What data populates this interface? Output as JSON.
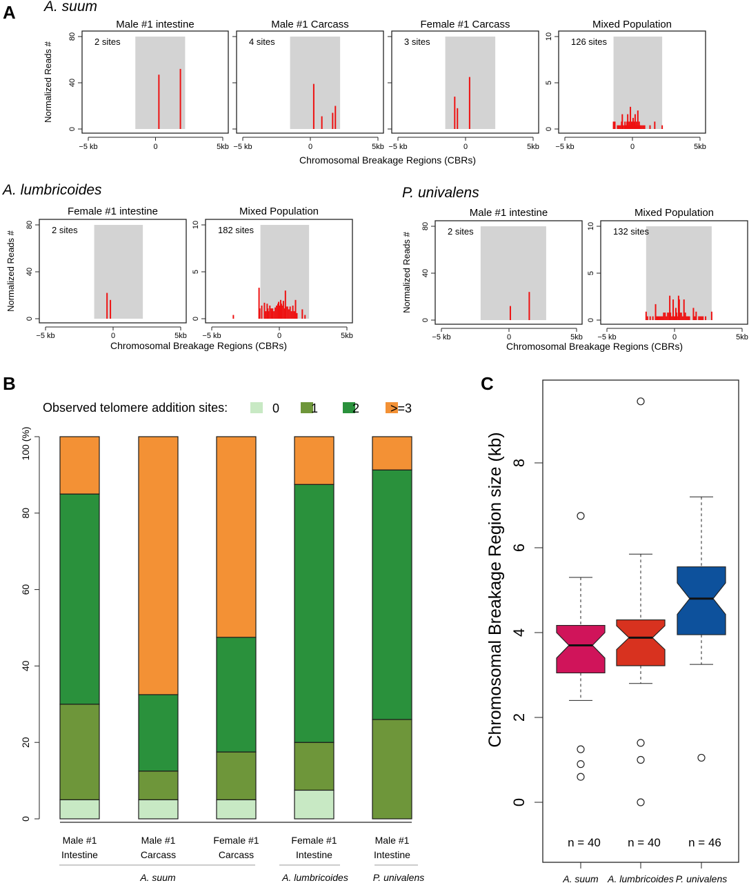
{
  "chart_data": [
    {
      "panel": "A",
      "type": "bar",
      "xlabel": "Chromosomal Breakage Regions (CBRs)",
      "ylabel": "Normalized Reads #",
      "x_ticks": [
        "−5 kb",
        "0",
        "5kb"
      ],
      "xlim_kb": [
        -5,
        5
      ],
      "groups": [
        {
          "species": "A. suum",
          "plots": [
            {
              "title": "Male #1 intestine",
              "sites": "2 sites",
              "ylim": [
                0,
                80
              ],
              "y_ticks": [
                "0",
                "40",
                "80"
              ],
              "cbr_kb": [
                -1.5,
                2.2
              ],
              "spikes": [
                [
                  0.25,
                  47
                ],
                [
                  1.85,
                  52
                ]
              ]
            },
            {
              "title": "Male #1 Carcass",
              "sites": "4 sites",
              "ylim": [
                0,
                80
              ],
              "y_ticks": [
                "0",
                "40",
                "80"
              ],
              "cbr_kb": [
                -1.5,
                2.2
              ],
              "spikes": [
                [
                  0.25,
                  39
                ],
                [
                  0.85,
                  11
                ],
                [
                  1.65,
                  14
                ],
                [
                  1.85,
                  20
                ]
              ]
            },
            {
              "title": "Female #1 Carcass",
              "sites": "3 sites",
              "ylim": [
                0,
                80
              ],
              "y_ticks": [
                "0",
                "40",
                "80"
              ],
              "cbr_kb": [
                -1.5,
                2.2
              ],
              "spikes": [
                [
                  -0.8,
                  28
                ],
                [
                  -0.6,
                  18
                ],
                [
                  0.3,
                  45
                ]
              ]
            },
            {
              "title": "Mixed Population",
              "sites": "126 sites",
              "ylim": [
                0,
                10
              ],
              "y_ticks": [
                "0",
                "5",
                "10"
              ],
              "cbr_kb": [
                -1.4,
                2.2
              ],
              "spikes": [
                [
                  -1.4,
                  0.8
                ],
                [
                  -1.3,
                  0.8
                ],
                [
                  -1.1,
                  0.4
                ],
                [
                  -1.0,
                  0.4
                ],
                [
                  -0.9,
                  0.4
                ],
                [
                  -0.8,
                  0.8
                ],
                [
                  -0.75,
                  1.6
                ],
                [
                  -0.7,
                  0.4
                ],
                [
                  -0.6,
                  0.4
                ],
                [
                  -0.55,
                  0.8
                ],
                [
                  -0.5,
                  0.4
                ],
                [
                  -0.45,
                  0.4
                ],
                [
                  -0.4,
                  0.8
                ],
                [
                  -0.35,
                  1.6
                ],
                [
                  -0.3,
                  0.4
                ],
                [
                  -0.25,
                  0.8
                ],
                [
                  -0.2,
                  0.4
                ],
                [
                  -0.15,
                  2.4
                ],
                [
                  -0.1,
                  0.4
                ],
                [
                  -0.05,
                  0.8
                ],
                [
                  0.0,
                  0.4
                ],
                [
                  0.05,
                  1.2
                ],
                [
                  0.1,
                  0.4
                ],
                [
                  0.15,
                  0.8
                ],
                [
                  0.2,
                  1.6
                ],
                [
                  0.25,
                  0.4
                ],
                [
                  0.3,
                  0.8
                ],
                [
                  0.35,
                  0.4
                ],
                [
                  0.4,
                  2.0
                ],
                [
                  0.45,
                  0.4
                ],
                [
                  0.5,
                  0.8
                ],
                [
                  0.55,
                  0.4
                ],
                [
                  0.6,
                  0.4
                ],
                [
                  0.7,
                  0.4
                ],
                [
                  0.8,
                  0.4
                ],
                [
                  0.9,
                  0.4
                ],
                [
                  1.3,
                  0.4
                ],
                [
                  1.65,
                  0.8
                ],
                [
                  2.2,
                  0.4
                ]
              ]
            }
          ]
        },
        {
          "species": "A. lumbricoides",
          "plots": [
            {
              "title": "Female #1 intestine",
              "sites": "2 sites",
              "ylim": [
                0,
                80
              ],
              "y_ticks": [
                "0",
                "40",
                "80"
              ],
              "cbr_kb": [
                -1.4,
                2.2
              ],
              "spikes": [
                [
                  -0.45,
                  22
                ],
                [
                  -0.2,
                  16
                ]
              ]
            },
            {
              "title": "Mixed Population",
              "sites": "182 sites",
              "ylim": [
                0,
                10
              ],
              "y_ticks": [
                "0",
                "5",
                "10"
              ],
              "cbr_kb": [
                -1.4,
                2.2
              ],
              "spikes": [
                [
                  -3.4,
                  0.4
                ],
                [
                  -1.5,
                  3.3
                ],
                [
                  -1.45,
                  1.1
                ],
                [
                  -1.3,
                  1.4
                ],
                [
                  -1.1,
                  1.7
                ],
                [
                  -1.0,
                  0.8
                ],
                [
                  -0.9,
                  1.6
                ],
                [
                  -0.85,
                  1.1
                ],
                [
                  -0.8,
                  0.8
                ],
                [
                  -0.7,
                  1.4
                ],
                [
                  -0.6,
                  1.1
                ],
                [
                  -0.55,
                  0.8
                ],
                [
                  -0.5,
                  1.1
                ],
                [
                  -0.4,
                  0.8
                ],
                [
                  -0.3,
                  1.2
                ],
                [
                  -0.2,
                  1.4
                ],
                [
                  -0.1,
                  1.6
                ],
                [
                  -0.05,
                  1.8
                ],
                [
                  0.0,
                  1.4
                ],
                [
                  0.1,
                  2.0
                ],
                [
                  0.15,
                  1.6
                ],
                [
                  0.2,
                  1.4
                ],
                [
                  0.3,
                  1.9
                ],
                [
                  0.4,
                  1.1
                ],
                [
                  0.45,
                  3.0
                ],
                [
                  0.5,
                  1.3
                ],
                [
                  0.6,
                  1.3
                ],
                [
                  0.7,
                  1.0
                ],
                [
                  0.8,
                  1.3
                ],
                [
                  0.9,
                  0.8
                ],
                [
                  1.0,
                  1.4
                ],
                [
                  1.1,
                  0.8
                ],
                [
                  1.2,
                  2.0
                ],
                [
                  1.3,
                  0.6
                ],
                [
                  1.7,
                  1.0
                ],
                [
                  1.9,
                  0.4
                ]
              ]
            }
          ]
        },
        {
          "species": "P. univalens",
          "plots": [
            {
              "title": "Male #1 intestine",
              "sites": "2 sites",
              "ylim": [
                0,
                80
              ],
              "y_ticks": [
                "0",
                "40",
                "80"
              ],
              "cbr_kb": [
                -2.1,
                2.75
              ],
              "spikes": [
                [
                  0.1,
                  12
                ],
                [
                  1.5,
                  24
                ]
              ]
            },
            {
              "title": "Mixed Population",
              "sites": "132 sites",
              "ylim": [
                0,
                10
              ],
              "y_ticks": [
                "0",
                "5",
                "10"
              ],
              "cbr_kb": [
                -2.1,
                2.75
              ],
              "spikes": [
                [
                  -2.1,
                  0.9
                ],
                [
                  -2.0,
                  0.4
                ],
                [
                  -1.8,
                  0.4
                ],
                [
                  -1.6,
                  0.4
                ],
                [
                  -1.4,
                  1.7
                ],
                [
                  -1.3,
                  0.4
                ],
                [
                  -1.2,
                  0.4
                ],
                [
                  -1.1,
                  0.4
                ],
                [
                  -1.0,
                  0.4
                ],
                [
                  -0.9,
                  0.4
                ],
                [
                  -0.8,
                  0.8
                ],
                [
                  -0.7,
                  0.8
                ],
                [
                  -0.6,
                  0.4
                ],
                [
                  -0.5,
                  0.8
                ],
                [
                  -0.4,
                  0.8
                ],
                [
                  -0.35,
                  2.6
                ],
                [
                  -0.3,
                  0.8
                ],
                [
                  -0.2,
                  0.4
                ],
                [
                  -0.1,
                  2.2
                ],
                [
                  0.0,
                  0.4
                ],
                [
                  0.1,
                  1.3
                ],
                [
                  0.15,
                  0.8
                ],
                [
                  0.2,
                  0.4
                ],
                [
                  0.3,
                  2.6
                ],
                [
                  0.35,
                  2.2
                ],
                [
                  0.4,
                  0.8
                ],
                [
                  0.5,
                  0.8
                ],
                [
                  0.6,
                  0.4
                ],
                [
                  0.7,
                  2.2
                ],
                [
                  0.8,
                  0.8
                ],
                [
                  0.9,
                  0.4
                ],
                [
                  1.0,
                  0.4
                ],
                [
                  1.1,
                  0.4
                ],
                [
                  1.4,
                  1.3
                ],
                [
                  1.5,
                  0.4
                ],
                [
                  1.6,
                  0.9
                ],
                [
                  1.8,
                  0.4
                ],
                [
                  1.9,
                  0.4
                ],
                [
                  2.0,
                  0.4
                ],
                [
                  2.1,
                  0.4
                ],
                [
                  2.3,
                  0.4
                ],
                [
                  2.75,
                  0.9
                ]
              ]
            }
          ]
        }
      ]
    },
    {
      "panel": "B",
      "type": "bar",
      "stacked": true,
      "legend_title": "Observed telomere addition sites:",
      "ylabel_top": "100 (%)",
      "ylim": [
        0,
        100
      ],
      "y_ticks": [
        "0",
        "20",
        "40",
        "60",
        "80"
      ],
      "categories": [
        [
          "Male #1",
          "Intestine"
        ],
        [
          "Male #1",
          "Carcass"
        ],
        [
          "Female #1",
          "Carcass"
        ],
        [
          "Female #1",
          "Intestine"
        ],
        [
          "Male #1",
          "Intestine"
        ]
      ],
      "species_groups": [
        "A. suum",
        "A. lumbricoides",
        "P. univalens"
      ],
      "series": [
        {
          "name": "0",
          "color": "#c8e9c4",
          "values": [
            5,
            5,
            5,
            7.5,
            0
          ]
        },
        {
          "name": "1",
          "color": "#6e963a",
          "values": [
            25,
            7.5,
            12.5,
            12.5,
            26
          ]
        },
        {
          "name": "2",
          "color": "#2a913c",
          "values": [
            55,
            20,
            30,
            67.5,
            65.3
          ]
        },
        {
          "name": ">=3",
          "color": "#f39135",
          "values": [
            15,
            67.5,
            52.5,
            12.5,
            8.7
          ]
        }
      ]
    },
    {
      "panel": "C",
      "type": "box",
      "ylabel": "Chromosomal Breakage Region size (kb)",
      "ylim": [
        -1.5,
        9.8
      ],
      "y_ticks": [
        "0",
        "2",
        "4",
        "6",
        "8"
      ],
      "categories": [
        "A. suum",
        "A. lumbricoides",
        "P. univalens"
      ],
      "counts": [
        "n = 40",
        "n = 40",
        "n = 46"
      ],
      "boxes": [
        {
          "color": "#d0145a",
          "whisker_low": 2.4,
          "q1": 3.05,
          "median": 3.7,
          "q3": 4.17,
          "whisker_high": 5.3,
          "notch": 0.3,
          "outliers": [
            6.75,
            1.25,
            0.9,
            0.6
          ]
        },
        {
          "color": "#d8321f",
          "whisker_low": 2.8,
          "q1": 3.22,
          "median": 3.88,
          "q3": 4.3,
          "whisker_high": 5.85,
          "notch": 0.28,
          "outliers": [
            9.45,
            1.4,
            1.0,
            0.0
          ]
        },
        {
          "color": "#0d519c",
          "whisker_low": 3.25,
          "q1": 3.95,
          "median": 4.8,
          "q3": 5.55,
          "whisker_high": 7.2,
          "notch": 0.37,
          "outliers": [
            1.05
          ]
        }
      ]
    }
  ],
  "labels": {
    "a": "A",
    "b": "B",
    "c": "C"
  }
}
